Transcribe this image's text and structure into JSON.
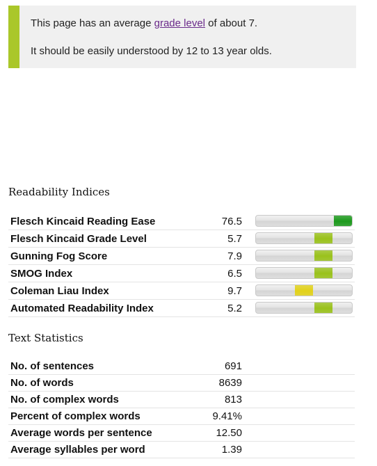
{
  "notice": {
    "line1_before": "This page has an average ",
    "line1_link": "grade level",
    "line1_after": " of about 7.",
    "line2": "It should be easily understood by 12 to 13 year olds.",
    "accent_color": "#aac72a",
    "link_color": "#6a2a8a"
  },
  "readability": {
    "heading": "Readability Indices",
    "rows": [
      {
        "name": "Flesch Kincaid Reading Ease",
        "value": "76.5",
        "level": 0.93,
        "color": "#1d9a1d"
      },
      {
        "name": "Flesch Kincaid Grade Level",
        "value": "5.7",
        "level": 0.7,
        "color": "#9ac21c"
      },
      {
        "name": "Gunning Fog Score",
        "value": "7.9",
        "level": 0.7,
        "color": "#9ac21c"
      },
      {
        "name": "SMOG Index",
        "value": "6.5",
        "level": 0.7,
        "color": "#9ac21c"
      },
      {
        "name": "Coleman Liau Index",
        "value": "9.7",
        "level": 0.5,
        "color": "#e2d21a"
      },
      {
        "name": "Automated Readability Index",
        "value": "5.2",
        "level": 0.7,
        "color": "#9ac21c"
      }
    ]
  },
  "text_statistics": {
    "heading": "Text Statistics",
    "rows": [
      {
        "name": "No. of sentences",
        "value": "691"
      },
      {
        "name": "No. of words",
        "value": "8639"
      },
      {
        "name": "No. of complex words",
        "value": "813"
      },
      {
        "name": "Percent of complex words",
        "value": "9.41%"
      },
      {
        "name": "Average words per sentence",
        "value": "12.50"
      },
      {
        "name": "Average syllables per word",
        "value": "1.39"
      }
    ]
  }
}
